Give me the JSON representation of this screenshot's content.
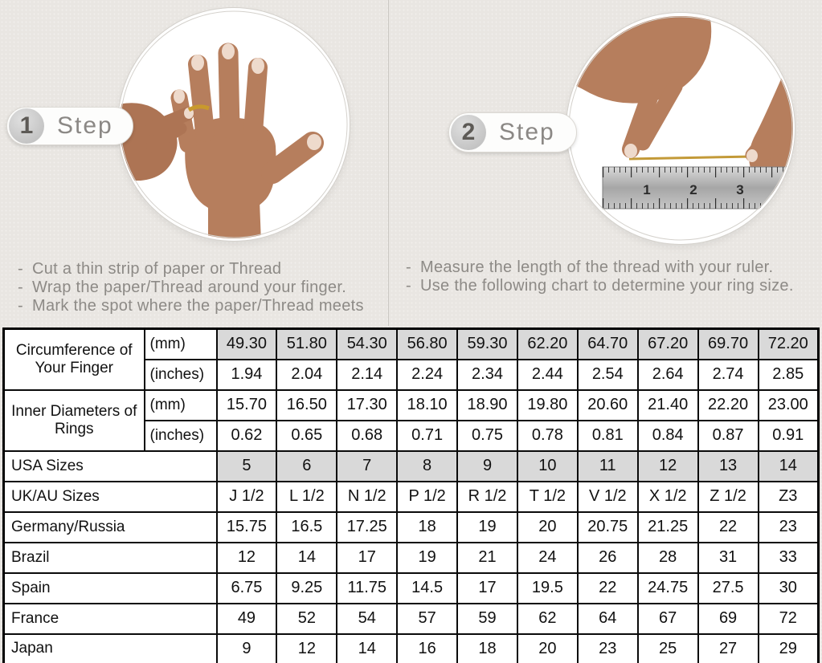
{
  "bullets_marker": "-",
  "colors": {
    "background": "#e9e6e2",
    "shaded_cell": "#d9d9d9",
    "table_border": "#000000",
    "step_text": "#8b8885",
    "gold_thread": "#c39a38"
  },
  "steps": [
    {
      "number": "1",
      "label": "Step",
      "photo": "hand-with-thread-on-ring-finger",
      "bullets": [
        "Cut a thin strip of paper or Thread",
        "Wrap the paper/Thread around your finger.",
        "Mark the spot where the paper/Thread meets"
      ]
    },
    {
      "number": "2",
      "label": "Step",
      "photo": "hands-measuring-thread-with-ruler",
      "ruler_numbers": [
        "1",
        "2",
        "3"
      ],
      "bullets": [
        "Measure the length of the thread with your ruler.",
        "Use the following chart to determine your ring size."
      ]
    }
  ],
  "table": {
    "rows": [
      {
        "group": "Circumference of Your Finger",
        "group_rowspan": 2,
        "unit": "(mm)",
        "shaded": true,
        "values": [
          "49.30",
          "51.80",
          "54.30",
          "56.80",
          "59.30",
          "62.20",
          "64.70",
          "67.20",
          "69.70",
          "72.20"
        ]
      },
      {
        "unit": "(inches)",
        "shaded": false,
        "values": [
          "1.94",
          "2.04",
          "2.14",
          "2.24",
          "2.34",
          "2.44",
          "2.54",
          "2.64",
          "2.74",
          "2.85"
        ]
      },
      {
        "group": "Inner Diameters of Rings",
        "group_rowspan": 2,
        "unit": "(mm)",
        "shaded": false,
        "values": [
          "15.70",
          "16.50",
          "17.30",
          "18.10",
          "18.90",
          "19.80",
          "20.60",
          "21.40",
          "22.20",
          "23.00"
        ]
      },
      {
        "unit": "(inches)",
        "shaded": false,
        "values": [
          "0.62",
          "0.65",
          "0.68",
          "0.71",
          "0.75",
          "0.78",
          "0.81",
          "0.84",
          "0.87",
          "0.91"
        ]
      },
      {
        "label": "USA Sizes",
        "shaded": true,
        "values": [
          "5",
          "6",
          "7",
          "8",
          "9",
          "10",
          "11",
          "12",
          "13",
          "14"
        ]
      },
      {
        "label": "UK/AU Sizes",
        "shaded": false,
        "values": [
          "J 1/2",
          "L 1/2",
          "N 1/2",
          "P 1/2",
          "R 1/2",
          "T 1/2",
          "V 1/2",
          "X 1/2",
          "Z 1/2",
          "Z3"
        ]
      },
      {
        "label": "Germany/Russia",
        "shaded": false,
        "values": [
          "15.75",
          "16.5",
          "17.25",
          "18",
          "19",
          "20",
          "20.75",
          "21.25",
          "22",
          "23"
        ]
      },
      {
        "label": "Brazil",
        "shaded": false,
        "values": [
          "12",
          "14",
          "17",
          "19",
          "21",
          "24",
          "26",
          "28",
          "31",
          "33"
        ]
      },
      {
        "label": "Spain",
        "shaded": false,
        "values": [
          "6.75",
          "9.25",
          "11.75",
          "14.5",
          "17",
          "19.5",
          "22",
          "24.75",
          "27.5",
          "30"
        ]
      },
      {
        "label": "France",
        "shaded": false,
        "values": [
          "49",
          "52",
          "54",
          "57",
          "59",
          "62",
          "64",
          "67",
          "69",
          "72"
        ]
      },
      {
        "label": "Japan",
        "shaded": false,
        "values": [
          "9",
          "12",
          "14",
          "16",
          "18",
          "20",
          "23",
          "25",
          "27",
          "29"
        ]
      }
    ]
  }
}
